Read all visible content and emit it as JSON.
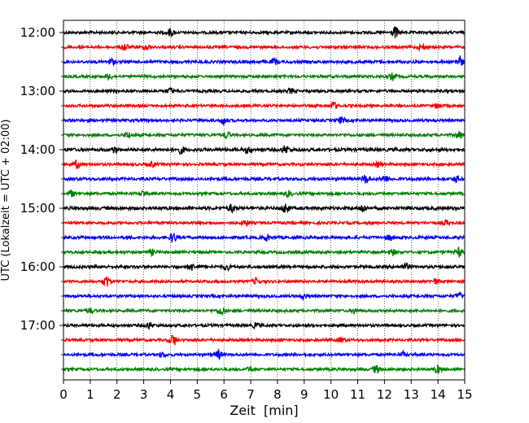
{
  "chart_data": {
    "type": "line",
    "xlabel": "Zeit  [min]",
    "ylabel": "UTC (Lokalzeit = UTC + 02:00)",
    "xlim": [
      0,
      15
    ],
    "x_ticks": [
      "0",
      "1",
      "2",
      "3",
      "4",
      "5",
      "6",
      "7",
      "8",
      "9",
      "10",
      "11",
      "12",
      "13",
      "14",
      "15"
    ],
    "y_tick_labels": [
      "12:00",
      "13:00",
      "14:00",
      "15:00",
      "16:00",
      "17:00"
    ],
    "grid": "vertical dotted",
    "trace_interval_minutes": 15,
    "colors_cycle": [
      "#000000",
      "#ff0000",
      "#0000ff",
      "#008000"
    ],
    "traces": [
      {
        "time": "12:00",
        "color": "#000000",
        "amplitude": 1.0,
        "events": [
          {
            "x": 4.0,
            "a": 2.0
          },
          {
            "x": 12.4,
            "a": 3.0
          }
        ]
      },
      {
        "time": "12:15",
        "color": "#ff0000",
        "amplitude": 1.0,
        "events": [
          {
            "x": 2.3,
            "a": 2.0
          },
          {
            "x": 3.1,
            "a": 1.6
          },
          {
            "x": 13.4,
            "a": 1.6
          }
        ]
      },
      {
        "time": "12:30",
        "color": "#0000ff",
        "amplitude": 1.1,
        "events": [
          {
            "x": 1.8,
            "a": 1.5
          },
          {
            "x": 7.9,
            "a": 1.5
          },
          {
            "x": 14.8,
            "a": 3.0
          }
        ]
      },
      {
        "time": "12:45",
        "color": "#008000",
        "amplitude": 1.0,
        "events": [
          {
            "x": 1.7,
            "a": 1.6
          },
          {
            "x": 12.3,
            "a": 1.8
          }
        ]
      },
      {
        "time": "13:00",
        "color": "#000000",
        "amplitude": 1.0,
        "events": [
          {
            "x": 4.0,
            "a": 1.5
          },
          {
            "x": 8.5,
            "a": 1.3
          }
        ]
      },
      {
        "time": "13:15",
        "color": "#ff0000",
        "amplitude": 1.0,
        "events": [
          {
            "x": 10.1,
            "a": 2.0
          },
          {
            "x": 14.0,
            "a": 1.3
          }
        ]
      },
      {
        "time": "13:30",
        "color": "#0000ff",
        "amplitude": 1.0,
        "events": [
          {
            "x": 6.0,
            "a": 2.0
          },
          {
            "x": 10.4,
            "a": 1.5
          }
        ]
      },
      {
        "time": "13:45",
        "color": "#008000",
        "amplitude": 1.0,
        "events": [
          {
            "x": 2.4,
            "a": 1.4
          },
          {
            "x": 6.1,
            "a": 1.8
          },
          {
            "x": 14.8,
            "a": 2.0
          }
        ]
      },
      {
        "time": "14:00",
        "color": "#000000",
        "amplitude": 1.2,
        "events": [
          {
            "x": 1.9,
            "a": 1.5
          },
          {
            "x": 4.4,
            "a": 1.8
          },
          {
            "x": 8.3,
            "a": 2.0
          },
          {
            "x": 6.9,
            "a": 1.6
          }
        ]
      },
      {
        "time": "14:15",
        "color": "#ff0000",
        "amplitude": 1.0,
        "events": [
          {
            "x": 0.5,
            "a": 2.0
          },
          {
            "x": 3.3,
            "a": 1.3
          },
          {
            "x": 11.8,
            "a": 1.4
          }
        ]
      },
      {
        "time": "14:30",
        "color": "#0000ff",
        "amplitude": 1.1,
        "events": [
          {
            "x": 11.3,
            "a": 2.2
          },
          {
            "x": 12.0,
            "a": 2.0
          },
          {
            "x": 14.7,
            "a": 1.5
          }
        ]
      },
      {
        "time": "14:45",
        "color": "#008000",
        "amplitude": 1.0,
        "events": [
          {
            "x": 0.3,
            "a": 1.6
          },
          {
            "x": 3.0,
            "a": 1.5
          },
          {
            "x": 8.4,
            "a": 1.4
          }
        ]
      },
      {
        "time": "15:00",
        "color": "#000000",
        "amplitude": 1.2,
        "events": [
          {
            "x": 6.3,
            "a": 1.8
          },
          {
            "x": 8.3,
            "a": 2.5
          },
          {
            "x": 11.2,
            "a": 2.0
          }
        ]
      },
      {
        "time": "15:15",
        "color": "#ff0000",
        "amplitude": 1.0,
        "events": [
          {
            "x": 6.8,
            "a": 1.6
          },
          {
            "x": 14.3,
            "a": 1.2
          }
        ]
      },
      {
        "time": "15:30",
        "color": "#0000ff",
        "amplitude": 1.1,
        "events": [
          {
            "x": 4.1,
            "a": 2.4
          },
          {
            "x": 7.6,
            "a": 1.5
          },
          {
            "x": 12.2,
            "a": 1.3
          }
        ]
      },
      {
        "time": "15:45",
        "color": "#008000",
        "amplitude": 1.0,
        "events": [
          {
            "x": 3.3,
            "a": 1.4
          },
          {
            "x": 12.3,
            "a": 1.6
          },
          {
            "x": 14.8,
            "a": 2.5
          }
        ]
      },
      {
        "time": "16:00",
        "color": "#000000",
        "amplitude": 1.1,
        "events": [
          {
            "x": 4.8,
            "a": 1.6
          },
          {
            "x": 6.1,
            "a": 1.5
          },
          {
            "x": 12.8,
            "a": 1.5
          }
        ]
      },
      {
        "time": "16:15",
        "color": "#ff0000",
        "amplitude": 1.0,
        "events": [
          {
            "x": 1.6,
            "a": 3.0
          },
          {
            "x": 7.2,
            "a": 1.4
          },
          {
            "x": 13.9,
            "a": 1.3
          }
        ]
      },
      {
        "time": "16:30",
        "color": "#0000ff",
        "amplitude": 1.0,
        "events": [
          {
            "x": 9.0,
            "a": 1.4
          },
          {
            "x": 14.8,
            "a": 1.4
          }
        ]
      },
      {
        "time": "16:45",
        "color": "#008000",
        "amplitude": 1.0,
        "events": [
          {
            "x": 5.9,
            "a": 2.4
          },
          {
            "x": 1.0,
            "a": 1.2
          },
          {
            "x": 10.9,
            "a": 1.3
          }
        ]
      },
      {
        "time": "17:00",
        "color": "#000000",
        "amplitude": 1.0,
        "events": [
          {
            "x": 3.2,
            "a": 1.5
          },
          {
            "x": 7.2,
            "a": 1.3
          }
        ]
      },
      {
        "time": "17:15",
        "color": "#ff0000",
        "amplitude": 1.0,
        "events": [
          {
            "x": 4.1,
            "a": 3.0
          },
          {
            "x": 10.4,
            "a": 1.2
          }
        ]
      },
      {
        "time": "17:30",
        "color": "#0000ff",
        "amplitude": 1.0,
        "events": [
          {
            "x": 5.8,
            "a": 2.2
          },
          {
            "x": 3.7,
            "a": 1.3
          },
          {
            "x": 12.7,
            "a": 1.2
          }
        ]
      },
      {
        "time": "17:45",
        "color": "#008000",
        "amplitude": 1.0,
        "events": [
          {
            "x": 11.7,
            "a": 2.0
          },
          {
            "x": 14.0,
            "a": 1.8
          },
          {
            "x": 7.0,
            "a": 1.3
          }
        ]
      }
    ]
  }
}
